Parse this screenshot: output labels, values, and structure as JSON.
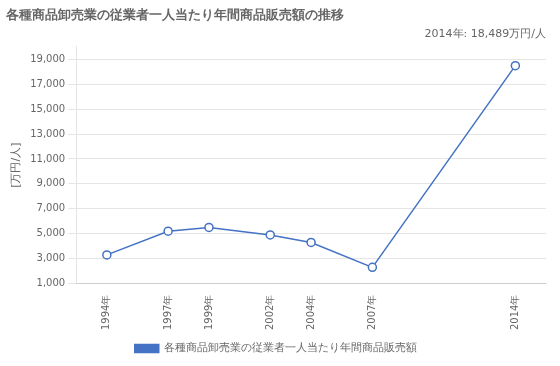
{
  "chart_data": {
    "type": "line",
    "title": "各種商品卸売業の従業者一人当たり年間商品販売額の推移",
    "ylabel": "[万円/人]",
    "annotation": "2014年: 18,489万円/人",
    "x": [
      1994,
      1997,
      1999,
      2002,
      2004,
      2007,
      2014
    ],
    "series": [
      {
        "name": "各種商品卸売業の従業者一人当たり年間商品販売額",
        "color": "#4472C4",
        "marker": "circle",
        "values": [
          3300,
          5200,
          5500,
          4900,
          4300,
          2300,
          18489
        ]
      }
    ],
    "xlim": [
      1992.5,
      2015.5
    ],
    "xticks": [
      {
        "value": 1994,
        "label": "1994年"
      },
      {
        "value": 1997,
        "label": "1997年"
      },
      {
        "value": 1999,
        "label": "1999年"
      },
      {
        "value": 2002,
        "label": "2002年"
      },
      {
        "value": 2004,
        "label": "2004年"
      },
      {
        "value": 2007,
        "label": "2007年"
      },
      {
        "value": 2014,
        "label": "2014年"
      }
    ],
    "ylim": [
      1000,
      20000
    ],
    "yticks": [
      {
        "value": 1000,
        "label": "1,000"
      },
      {
        "value": 3000,
        "label": "3,000"
      },
      {
        "value": 5000,
        "label": "5,000"
      },
      {
        "value": 7000,
        "label": "7,000"
      },
      {
        "value": 9000,
        "label": "9,000"
      },
      {
        "value": 11000,
        "label": "11,000"
      },
      {
        "value": 13000,
        "label": "13,000"
      },
      {
        "value": 15000,
        "label": "15,000"
      },
      {
        "value": 17000,
        "label": "17,000"
      },
      {
        "value": 19000,
        "label": "19,000"
      }
    ],
    "grid": "y",
    "legend": "bottom"
  }
}
